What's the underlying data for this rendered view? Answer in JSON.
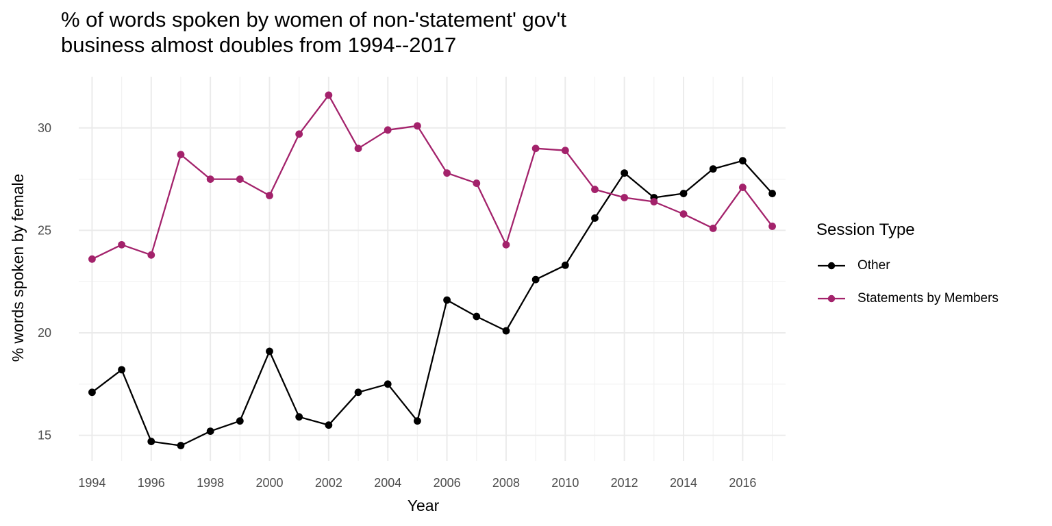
{
  "title_lines": [
    "% of words spoken by women of non-'statement' gov't",
    "business almost doubles from 1994--2017"
  ],
  "chart_data": {
    "type": "line",
    "title": "% of words spoken by women of non-'statement' gov't business almost doubles from 1994--2017",
    "xlabel": "Year",
    "ylabel": "% words spoken by female",
    "x": [
      1994,
      1995,
      1996,
      1997,
      1998,
      1999,
      2000,
      2001,
      2002,
      2003,
      2004,
      2005,
      2006,
      2007,
      2008,
      2009,
      2010,
      2011,
      2012,
      2013,
      2014,
      2015,
      2016,
      2017
    ],
    "x_ticks": [
      "1994",
      "1996",
      "1998",
      "2000",
      "2002",
      "2004",
      "2006",
      "2008",
      "2010",
      "2012",
      "2014",
      "2016"
    ],
    "y_ticks": [
      "15",
      "20",
      "25",
      "30"
    ],
    "xlim": [
      1993.55,
      2017.45
    ],
    "ylim": [
      13.75,
      32.5
    ],
    "grid": true,
    "legend_title": "Session Type",
    "legend_position": "right",
    "series": [
      {
        "name": "Other",
        "color": "#000000",
        "values": [
          17.1,
          18.2,
          14.7,
          14.5,
          15.2,
          15.7,
          19.1,
          15.9,
          15.5,
          17.1,
          17.5,
          15.7,
          21.6,
          20.8,
          20.1,
          22.6,
          23.3,
          25.6,
          27.8,
          26.6,
          26.8,
          28.0,
          28.4,
          26.8
        ]
      },
      {
        "name": "Statements by Members",
        "color": "#A3226B",
        "values": [
          23.6,
          24.3,
          23.8,
          28.7,
          27.5,
          27.5,
          26.7,
          29.7,
          31.6,
          29.0,
          29.9,
          30.1,
          27.8,
          27.3,
          24.3,
          29.0,
          28.9,
          27.0,
          26.6,
          26.4,
          25.8,
          25.1,
          27.1,
          25.2
        ]
      }
    ]
  }
}
